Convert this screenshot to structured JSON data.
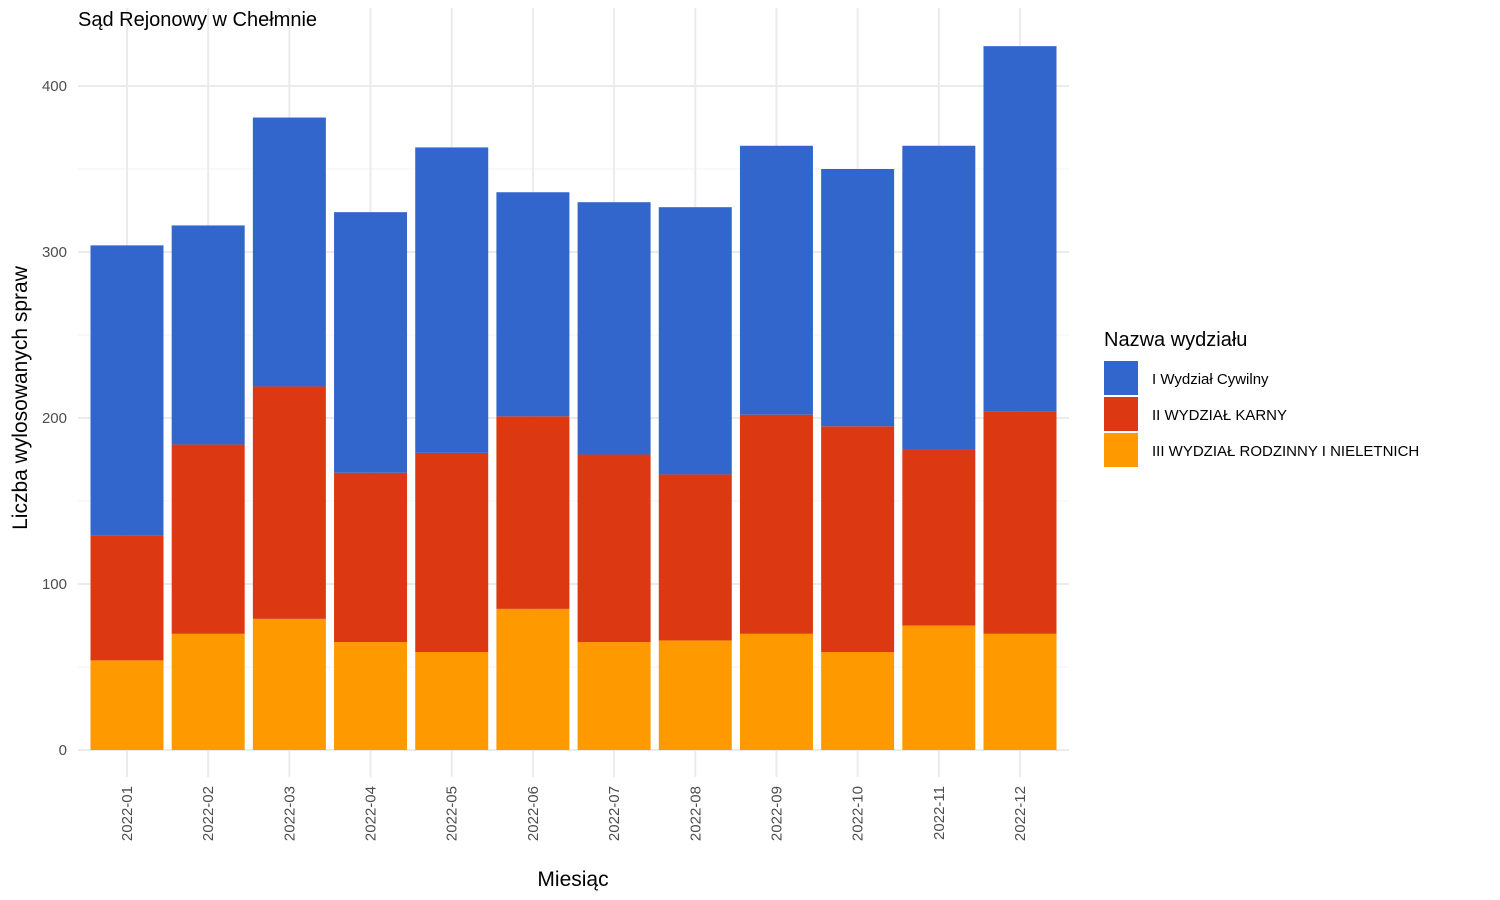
{
  "chart_data": {
    "type": "bar",
    "stacked": true,
    "title": "Sąd Rejonowy w Chełmnie",
    "xlabel": "Miesiąc",
    "ylabel": "Liczba wylosowanych spraw",
    "ylim": [
      0,
      440
    ],
    "yticks": [
      0,
      100,
      200,
      300,
      400
    ],
    "grid": true,
    "legend": {
      "title": "Nazwa wydziału",
      "position": "right"
    },
    "categories": [
      "2022-01",
      "2022-02",
      "2022-03",
      "2022-04",
      "2022-05",
      "2022-06",
      "2022-07",
      "2022-08",
      "2022-09",
      "2022-10",
      "2022-11",
      "2022-12"
    ],
    "series": [
      {
        "name": "III WYDZIAŁ RODZINNY I NIELETNICH",
        "color": "#FF9900",
        "values": [
          54,
          70,
          79,
          65,
          59,
          85,
          65,
          66,
          70,
          59,
          75,
          70
        ]
      },
      {
        "name": "II WYDZIAŁ KARNY",
        "color": "#DC3912",
        "values": [
          75,
          114,
          140,
          102,
          120,
          116,
          113,
          100,
          132,
          136,
          106,
          134
        ]
      },
      {
        "name": "I Wydział Cywilny",
        "color": "#3366CC",
        "values": [
          175,
          132,
          162,
          157,
          184,
          135,
          152,
          161,
          162,
          155,
          183,
          220
        ]
      }
    ],
    "legend_order": [
      "I Wydział Cywilny",
      "II WYDZIAŁ KARNY",
      "III WYDZIAŁ RODZINNY I NIELETNICH"
    ]
  }
}
